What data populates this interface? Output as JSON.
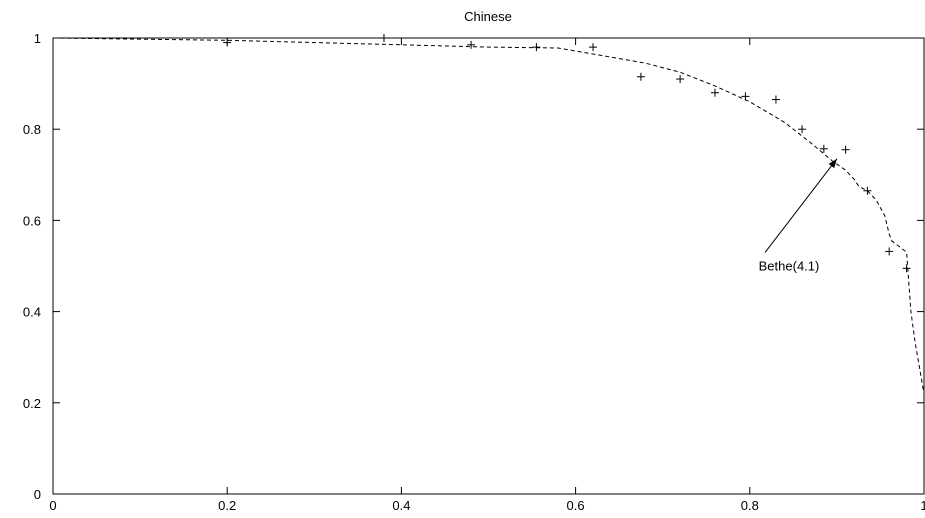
{
  "chart_data": {
    "type": "scatter",
    "title": "Chinese",
    "xlabel": "",
    "ylabel": "",
    "xlim": [
      0,
      1
    ],
    "ylim": [
      0,
      1
    ],
    "xticks": [
      0,
      0.2,
      0.4,
      0.6,
      0.8,
      1
    ],
    "yticks": [
      0,
      0.2,
      0.4,
      0.6,
      0.8,
      1
    ],
    "grid": false,
    "series": [
      {
        "type": "scatter",
        "marker": "plus",
        "color": "#000000",
        "x": [
          0.2,
          0.38,
          0.48,
          0.555,
          0.62,
          0.675,
          0.72,
          0.76,
          0.795,
          0.83,
          0.86,
          0.885,
          0.91,
          0.935,
          0.96,
          0.98
        ],
        "y": [
          0.99,
          1.0,
          0.985,
          0.98,
          0.98,
          0.915,
          0.91,
          0.88,
          0.872,
          0.865,
          0.8,
          0.757,
          0.755,
          0.665,
          0.532,
          0.495
        ]
      },
      {
        "type": "line",
        "style": "dashed",
        "color": "#000000",
        "x": [
          0,
          0.2,
          0.4,
          0.5,
          0.58,
          0.62,
          0.68,
          0.72,
          0.76,
          0.8,
          0.84,
          0.87,
          0.895,
          0.91,
          0.92,
          0.925,
          0.935,
          0.945,
          0.955,
          0.96,
          0.963,
          0.97,
          0.98,
          0.985,
          0.99,
          1.0
        ],
        "y": [
          1.0,
          0.995,
          0.985,
          0.98,
          0.978,
          0.965,
          0.945,
          0.925,
          0.895,
          0.86,
          0.815,
          0.77,
          0.73,
          0.71,
          0.69,
          0.675,
          0.665,
          0.645,
          0.61,
          0.57,
          0.555,
          0.545,
          0.53,
          0.4,
          0.33,
          0.22
        ]
      }
    ],
    "annotation": {
      "text": "Bethe(4.1)",
      "text_x": 0.845,
      "text_y": 0.49,
      "arrow_to_x": 0.9,
      "arrow_to_y": 0.735
    }
  }
}
